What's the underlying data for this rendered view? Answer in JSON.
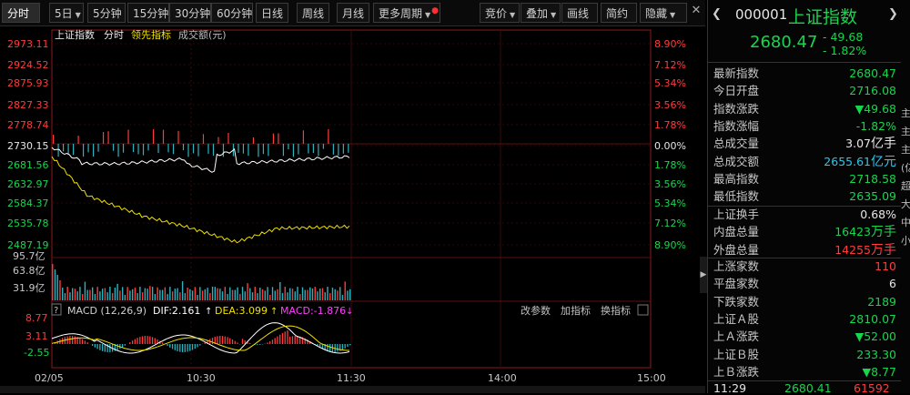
{
  "toolbar": {
    "periods": [
      "分时",
      "5日",
      "5分钟",
      "15分钟",
      "30分钟",
      "60分钟",
      "日线",
      "周线",
      "月线",
      "更多周期"
    ],
    "tools": [
      "竞价",
      "叠加",
      "画线",
      "简约",
      "隐藏"
    ]
  },
  "legend": {
    "name": "上证指数",
    "fenshi": "分时",
    "lead": "领先指标",
    "amount": "成交额(元)"
  },
  "price_axis": {
    "left": [
      "2973.11",
      "2924.52",
      "2875.93",
      "2827.33",
      "2778.74",
      "2730.15",
      "2681.56",
      "2632.97",
      "2584.37",
      "2535.78",
      "2487.19"
    ],
    "right": [
      "8.90%",
      "7.12%",
      "5.34%",
      "3.56%",
      "1.78%",
      "0.00%",
      "1.78%",
      "3.56%",
      "5.34%",
      "7.12%",
      "8.90%"
    ]
  },
  "volume_axis": [
    "95.7亿",
    "63.8亿",
    "31.9亿"
  ],
  "macd": {
    "label": "MACD (12,26,9)",
    "dif": "DIF:2.161",
    "dea": "DEA:3.099",
    "macd": "MACD:-1.876",
    "buttons": [
      "改参数",
      "加指标",
      "换指标"
    ],
    "axis": [
      "8.77",
      "3.11",
      "-2.55"
    ]
  },
  "time_axis": [
    "02/05",
    "10:30",
    "11:30",
    "14:00",
    "15:00"
  ],
  "colors": {
    "up": "#ff3b3b",
    "down": "#16d64c",
    "index_line": "#ffffff",
    "lead_line": "#f0e000",
    "vol": "#2ab3c0"
  },
  "header": {
    "code": "000001",
    "name": "上证指数",
    "price": "2680.47",
    "change": "- 49.68",
    "pct": "- 1.82%"
  },
  "stats1": [
    {
      "label": "最新指数",
      "value": "2680.47",
      "cls": "down"
    },
    {
      "label": "今日开盘",
      "value": "2716.08",
      "cls": "down"
    },
    {
      "label": "指数涨跌",
      "value": "▼49.68",
      "cls": "down"
    },
    {
      "label": "指数涨幅",
      "value": "-1.82%",
      "cls": "down"
    },
    {
      "label": "总成交量",
      "value": "3.07",
      "unit": "亿手",
      "cls": "white"
    },
    {
      "label": "总成交额",
      "value": "2655.61",
      "unit": "亿元",
      "cls": "cyan"
    },
    {
      "label": "最高指数",
      "value": "2718.58",
      "cls": "down"
    },
    {
      "label": "最低指数",
      "value": "2635.09",
      "cls": "down"
    }
  ],
  "stats2": [
    {
      "label": "上证换手",
      "value": "0.68%",
      "cls": "white"
    },
    {
      "label": "内盘总量",
      "value": "16423",
      "unit": "万手",
      "cls": "down"
    },
    {
      "label": "外盘总量",
      "value": "14255",
      "unit": "万手",
      "cls": "up"
    }
  ],
  "stats3": [
    {
      "label": "上涨家数",
      "value": "110",
      "cls": "up"
    },
    {
      "label": "平盘家数",
      "value": "6",
      "cls": "white"
    },
    {
      "label": "下跌家数",
      "value": "2189",
      "cls": "down"
    },
    {
      "label": "上证Ａ股",
      "value": "2810.07",
      "cls": "down"
    },
    {
      "label": "上Ａ涨跌",
      "value": "▼52.00",
      "cls": "down"
    },
    {
      "label": "上证Ｂ股",
      "value": "233.30",
      "cls": "down"
    },
    {
      "label": "上Ｂ涨跌",
      "value": "▼8.77",
      "cls": "down"
    }
  ],
  "ticker": {
    "time": "11:29",
    "price": "2680.41",
    "vol": "61592"
  },
  "side_labels": [
    "主",
    "主",
    "主",
    "(亿",
    "超",
    "大",
    "中",
    "小"
  ]
}
